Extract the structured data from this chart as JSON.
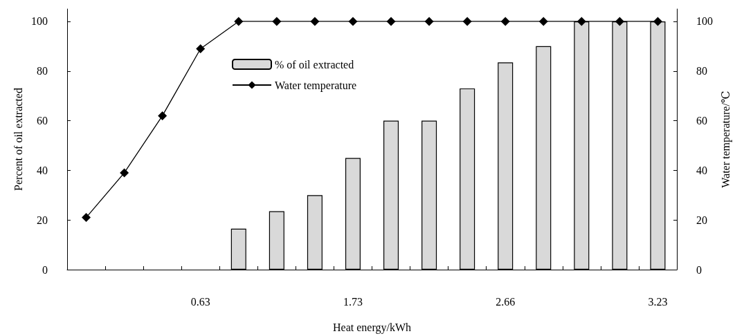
{
  "chart_data": {
    "type": "bar",
    "xlabel": "Heat energy/kWh",
    "ylabel": "Percent of oil extracted",
    "y2label": "Water temperature/℃",
    "categories": [
      null,
      null,
      null,
      "0.63",
      null,
      null,
      null,
      "1.73",
      null,
      null,
      null,
      "2.66",
      null,
      null,
      null,
      "3.23"
    ],
    "series": [
      {
        "name": "% of oil extracted",
        "color": "#d9d9d9",
        "values": [
          null,
          null,
          null,
          null,
          16.5,
          23.5,
          30,
          45,
          60,
          60,
          73,
          83.5,
          90,
          100,
          100,
          100
        ]
      },
      {
        "name": "Water temperature",
        "type": "line",
        "axis": "y2",
        "color": "#000000",
        "marker": "diamond",
        "line_style": "solid",
        "values": [
          21,
          39,
          62,
          89,
          100,
          100,
          100,
          100,
          100,
          100,
          100,
          100,
          100,
          100,
          100,
          100
        ]
      }
    ],
    "ylim": [
      0,
      105
    ],
    "yticks": [
      0,
      20,
      40,
      60,
      80,
      100
    ],
    "y2lim": [
      0,
      105
    ],
    "y2ticks": [
      0,
      20,
      40,
      60,
      80,
      100
    ],
    "grid": false,
    "legend": "top"
  }
}
